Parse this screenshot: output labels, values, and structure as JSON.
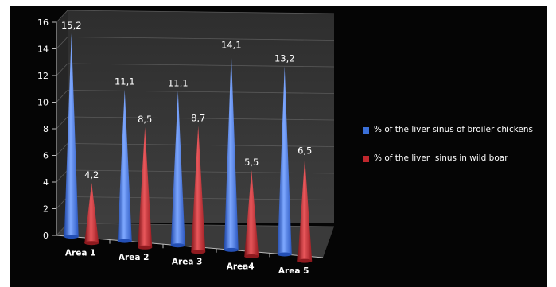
{
  "chart_data": {
    "type": "bar",
    "style": "3d-cone",
    "categories": [
      "Area 1",
      "Area 2",
      "Area 3",
      "Area4",
      "Area 5"
    ],
    "series": [
      {
        "name": "% of the liver sinus of broiler chickens",
        "values": [
          15.2,
          11.1,
          11.1,
          14.1,
          13.2
        ],
        "labels": [
          "15,2",
          "11,1",
          "11,1",
          "14,1",
          "13,2"
        ],
        "color": "#3a6fd8"
      },
      {
        "name": "% of the liver  sinus in wild boar",
        "values": [
          4.2,
          8.5,
          8.7,
          5.5,
          6.5
        ],
        "labels": [
          "4,2",
          "8,5",
          "8,7",
          "5,5",
          "6,5"
        ],
        "color": "#c0272d"
      }
    ],
    "ylim": [
      0,
      16
    ],
    "yticks": [
      "0",
      "2",
      "4",
      "6",
      "8",
      "10",
      "12",
      "14",
      "16"
    ],
    "title": "",
    "xlabel": "",
    "ylabel": "",
    "grid": true,
    "legend_position": "right",
    "background": "#050505"
  }
}
